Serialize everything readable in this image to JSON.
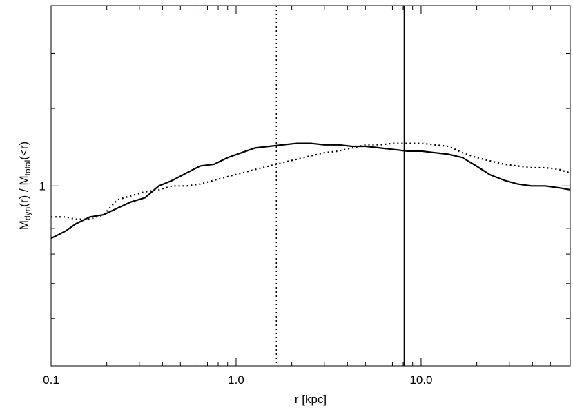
{
  "chart_data": {
    "type": "line",
    "xlabel": "r [kpc]",
    "ylabel_parts": [
      "M",
      "dyn",
      "(r) / M",
      "total",
      "(<r)"
    ],
    "log_x": true,
    "log_y": true,
    "xlim": [
      0.1,
      64
    ],
    "ylim": [
      0.39,
      2.57
    ],
    "xticks": [
      0.1,
      {
        "value": 1,
        "label": "1.0"
      },
      {
        "value": 10,
        "label": "10.0"
      }
    ],
    "xminorticks": [
      0.2,
      0.3,
      0.4,
      0.5,
      0.6,
      0.7,
      0.8,
      0.9,
      2,
      3,
      4,
      5,
      6,
      7,
      8,
      9,
      20,
      30,
      40,
      50,
      60
    ],
    "yticks": [
      1
    ],
    "yminorticks": [
      0.5,
      0.6,
      0.7,
      0.8,
      0.9,
      1.5,
      2
    ],
    "x": [
      0.1,
      0.12,
      0.136,
      0.162,
      0.192,
      0.228,
      0.271,
      0.322,
      0.382,
      0.454,
      0.539,
      0.64,
      0.76,
      0.902,
      1.07,
      1.27,
      1.51,
      1.79,
      2.13,
      2.53,
      3.0,
      3.57,
      4.24,
      5.03,
      5.97,
      7.09,
      8.42,
      10.0,
      11.9,
      14.1,
      16.7,
      19.9,
      23.6,
      28.1,
      33.3,
      39.5,
      46.9,
      55.7,
      64
    ],
    "series": [
      {
        "color": "#000000",
        "style": "solid",
        "values": [
          0.76,
          0.79,
          0.82,
          0.85,
          0.86,
          0.89,
          0.92,
          0.94,
          1.0,
          1.03,
          1.07,
          1.11,
          1.12,
          1.16,
          1.19,
          1.22,
          1.23,
          1.24,
          1.25,
          1.25,
          1.24,
          1.24,
          1.23,
          1.23,
          1.22,
          1.21,
          1.2,
          1.2,
          1.19,
          1.18,
          1.16,
          1.11,
          1.06,
          1.03,
          1.01,
          1.0,
          1.0,
          0.99,
          0.98
        ]
      },
      {
        "color": "#000000",
        "style": "dotted",
        "values": [
          0.85,
          0.85,
          0.84,
          0.84,
          0.86,
          0.93,
          0.95,
          0.97,
          0.98,
          1.0,
          1.0,
          1.01,
          1.03,
          1.05,
          1.07,
          1.09,
          1.11,
          1.13,
          1.15,
          1.17,
          1.19,
          1.2,
          1.22,
          1.24,
          1.24,
          1.25,
          1.25,
          1.25,
          1.24,
          1.23,
          1.19,
          1.16,
          1.14,
          1.12,
          1.11,
          1.1,
          1.1,
          1.09,
          1.07
        ]
      }
    ],
    "vlines": [
      {
        "x": 1.65,
        "style": "dotted"
      },
      {
        "x": 8.1,
        "style": "solid"
      }
    ]
  }
}
